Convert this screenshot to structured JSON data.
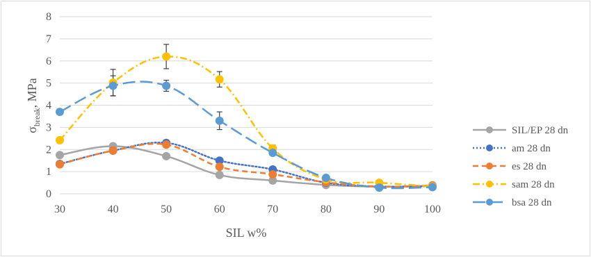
{
  "chart_data": {
    "type": "line",
    "title": "",
    "xlabel": "SIL w%",
    "ylabel_main": "σ",
    "ylabel_sub": "break",
    "ylabel_unit": ", MPa",
    "xlim": [
      30,
      100
    ],
    "ylim": [
      0,
      8
    ],
    "x_ticks": [
      30,
      40,
      50,
      60,
      70,
      80,
      90,
      100
    ],
    "y_ticks": [
      0,
      1,
      2,
      3,
      4,
      5,
      6,
      7,
      8
    ],
    "grid": "horizontal",
    "legend_position": "right",
    "series": [
      {
        "name": "SIL/EP 28 dn",
        "color": "#a5a5a5",
        "dash": "solid",
        "x": [
          30,
          40,
          50,
          60,
          70,
          80,
          90,
          100
        ],
        "y": [
          1.75,
          2.15,
          1.7,
          0.85,
          0.6,
          0.4,
          0.32,
          0.35
        ],
        "err": null
      },
      {
        "name": "am 28 dn",
        "color": "#4472c4",
        "dash": "dotted",
        "x": [
          30,
          40,
          50,
          60,
          70,
          80,
          90,
          100
        ],
        "y": [
          1.35,
          1.95,
          2.3,
          1.5,
          1.1,
          0.5,
          0.33,
          0.35
        ],
        "err": null
      },
      {
        "name": "es 28 dn",
        "color": "#ed7d31",
        "dash": "dashed",
        "x": [
          30,
          40,
          50,
          60,
          70,
          80,
          90,
          100
        ],
        "y": [
          1.33,
          1.95,
          2.22,
          1.22,
          0.88,
          0.52,
          0.33,
          0.38
        ],
        "err": null
      },
      {
        "name": "sam 28 dn",
        "color": "#ffc000",
        "dash": "dashdot",
        "x": [
          30,
          40,
          50,
          60,
          70,
          80,
          90,
          100
        ],
        "y": [
          2.42,
          5.02,
          6.2,
          5.17,
          2.05,
          0.65,
          0.5,
          0.33
        ],
        "err": [
          0,
          0.6,
          0.55,
          0.35,
          0.15,
          0,
          0,
          0
        ]
      },
      {
        "name": "bsa 28 dn",
        "color": "#5b9bd5",
        "dash": "longdash",
        "x": [
          30,
          40,
          50,
          60,
          70,
          80,
          90,
          100
        ],
        "y": [
          3.7,
          4.88,
          4.88,
          3.3,
          1.85,
          0.72,
          0.28,
          0.3
        ],
        "err": [
          0,
          0.45,
          0.25,
          0.4,
          0.1,
          0,
          0,
          0
        ]
      }
    ]
  }
}
